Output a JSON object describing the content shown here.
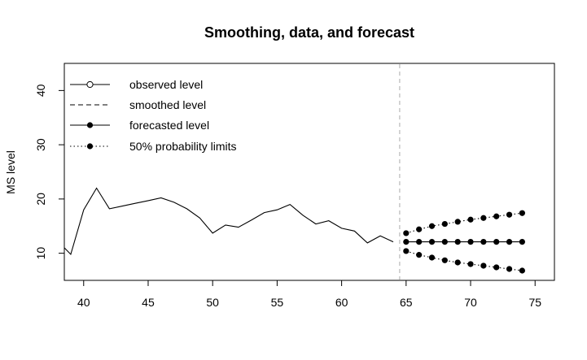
{
  "chart_data": {
    "type": "line",
    "title": "Smoothing, data, and forecast",
    "xlabel": "",
    "ylabel": "MS level",
    "xlim": [
      38.5,
      76.5
    ],
    "ylim": [
      5,
      45
    ],
    "xticks": [
      40,
      45,
      50,
      55,
      60,
      65,
      70,
      75
    ],
    "yticks": [
      10,
      20,
      30,
      40
    ],
    "vline_x": 64.5,
    "grid": false,
    "legend_position": "top-left",
    "legend": [
      {
        "label": "observed level",
        "style": "solid-open-circle"
      },
      {
        "label": "smoothed level",
        "style": "dashed"
      },
      {
        "label": "forecasted level",
        "style": "solid-filled-circle"
      },
      {
        "label": "50% probability limits",
        "style": "dotted-filled-circle"
      }
    ],
    "series": [
      {
        "key": "observed",
        "x": [
          38.5,
          39,
          40,
          41,
          42,
          43,
          44,
          45,
          46,
          47,
          48,
          49,
          50,
          51,
          52,
          53,
          54,
          55,
          56,
          57,
          58,
          59,
          60,
          61,
          62,
          63,
          64
        ],
        "values": [
          11.0,
          9.8,
          18.0,
          22.0,
          18.2,
          18.7,
          19.2,
          19.7,
          20.2,
          19.4,
          18.2,
          16.5,
          13.7,
          15.2,
          14.8,
          16.1,
          17.5,
          18.0,
          19.0,
          17.0,
          15.4,
          16.0,
          14.6,
          14.1,
          11.9,
          13.2,
          12.1
        ]
      },
      {
        "key": "forecast",
        "x": [
          65,
          66,
          67,
          68,
          69,
          70,
          71,
          72,
          73,
          74
        ],
        "values": [
          12.1,
          12.1,
          12.1,
          12.1,
          12.1,
          12.1,
          12.1,
          12.1,
          12.1,
          12.1
        ]
      },
      {
        "key": "upper",
        "x": [
          65,
          66,
          67,
          68,
          69,
          70,
          71,
          72,
          73,
          74
        ],
        "values": [
          13.7,
          14.4,
          15.0,
          15.4,
          15.8,
          16.2,
          16.5,
          16.8,
          17.1,
          17.4
        ]
      },
      {
        "key": "lower",
        "x": [
          65,
          66,
          67,
          68,
          69,
          70,
          71,
          72,
          73,
          74
        ],
        "values": [
          10.4,
          9.7,
          9.2,
          8.7,
          8.3,
          8.0,
          7.7,
          7.4,
          7.1,
          6.8
        ]
      }
    ]
  }
}
